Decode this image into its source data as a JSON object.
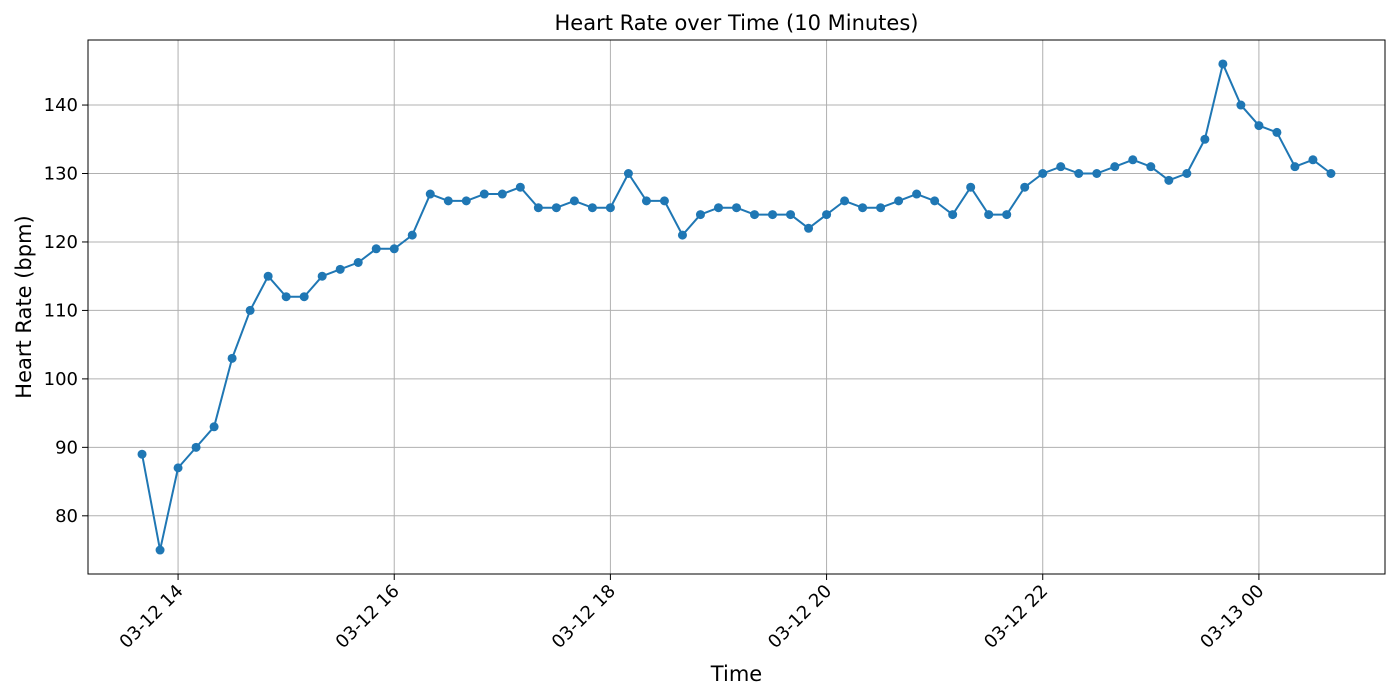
{
  "chart_data": {
    "type": "line",
    "title": "Heart Rate over Time (10 Minutes)",
    "xlabel": "Time",
    "ylabel": "Heart Rate (bpm)",
    "x_start": "2025-03-12 13:40",
    "x_interval_minutes": 10,
    "xlim": [
      "2025-03-12 13:10",
      "2025-03-13 01:10"
    ],
    "ylim": [
      71.5,
      149.5
    ],
    "x_ticks": [
      {
        "label": "03-12 14",
        "time": "2025-03-12 14:00"
      },
      {
        "label": "03-12 16",
        "time": "2025-03-12 16:00"
      },
      {
        "label": "03-12 18",
        "time": "2025-03-12 18:00"
      },
      {
        "label": "03-12 20",
        "time": "2025-03-12 20:00"
      },
      {
        "label": "03-12 22",
        "time": "2025-03-12 22:00"
      },
      {
        "label": "03-13 00",
        "time": "2025-03-13 00:00"
      }
    ],
    "y_ticks": [
      80,
      90,
      100,
      110,
      120,
      130,
      140
    ],
    "grid": true,
    "colors": {
      "line": "#1f77b4",
      "grid": "#b0b0b0"
    },
    "series": [
      {
        "values": [
          89,
          75,
          87,
          90,
          93,
          103,
          110,
          115,
          112,
          112,
          115,
          116,
          117,
          119,
          119,
          121,
          127,
          126,
          126,
          127,
          127,
          128,
          125,
          125,
          126,
          125,
          125,
          130,
          126,
          126,
          121,
          124,
          125,
          125,
          124,
          124,
          124,
          122,
          124,
          126,
          125,
          125,
          126,
          127,
          126,
          124,
          128,
          124,
          124,
          128,
          130,
          131,
          130,
          130,
          131,
          132,
          131,
          129,
          130,
          135,
          146,
          140,
          137,
          136,
          131,
          132,
          130
        ]
      }
    ]
  }
}
